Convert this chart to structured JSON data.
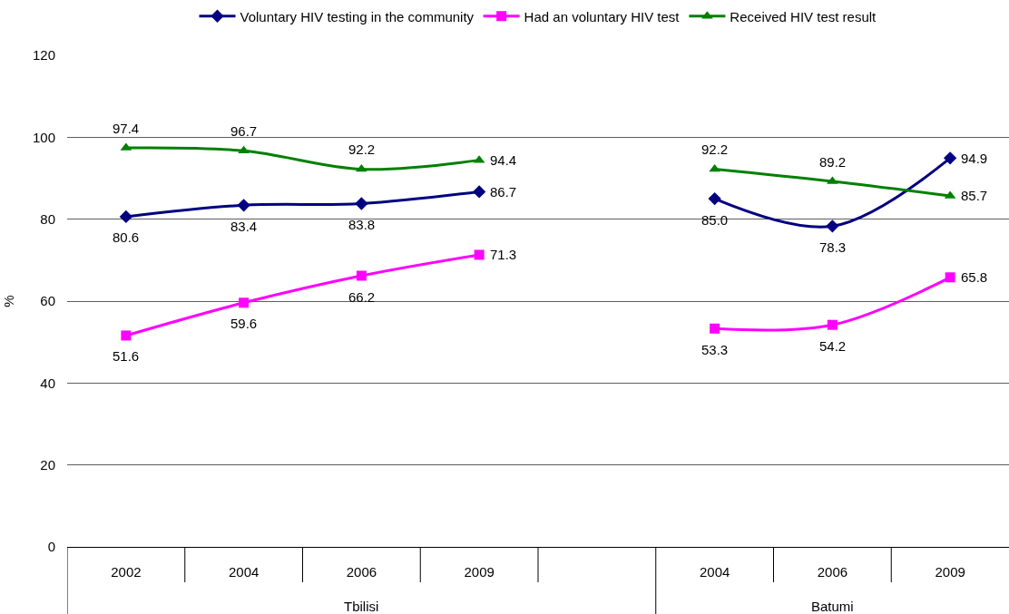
{
  "chart_data": {
    "type": "line",
    "ylabel": "%",
    "categories": [
      "2002",
      "2004",
      "2006",
      "2009",
      null,
      "2004",
      "2006",
      "2009"
    ],
    "annotations": [
      "Tbilisi",
      "Batumi"
    ],
    "ylim": [
      0,
      120
    ],
    "yticks": [
      0,
      20,
      40,
      60,
      80,
      100,
      120
    ],
    "grid": "y",
    "legend": "top",
    "line_style": "solid",
    "series": [
      {
        "name": "Voluntary HIV testing in the community",
        "color": "#000080",
        "marker": "diamond",
        "values": [
          80.6,
          83.4,
          83.8,
          86.7,
          null,
          85.0,
          78.3,
          94.9
        ],
        "value_labels": [
          "80.6",
          "83.4",
          "83.8",
          "86.7",
          null,
          "85.0",
          "78.3",
          "94.9"
        ]
      },
      {
        "name": "Had an voluntary HIV test",
        "color": "#ff00ff",
        "marker": "square",
        "values": [
          51.6,
          59.6,
          66.2,
          71.3,
          null,
          53.3,
          54.2,
          65.8
        ],
        "value_labels": [
          "51.6",
          "59.6",
          "66.2",
          "71.3",
          null,
          "53.3",
          "54.2",
          "65.8"
        ]
      },
      {
        "name": "Received HIV test result",
        "color": "#008000",
        "marker": "triangle",
        "values": [
          97.4,
          96.7,
          92.2,
          94.4,
          null,
          92.2,
          89.2,
          85.7
        ],
        "value_labels": [
          "97.4",
          "96.7",
          "92.2",
          "94.4",
          null,
          "92.2",
          "89.2",
          "85.7"
        ]
      }
    ]
  }
}
